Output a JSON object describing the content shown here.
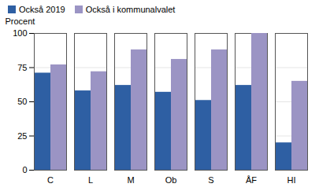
{
  "chart_data": {
    "type": "bar",
    "categories": [
      "C",
      "L",
      "M",
      "Ob",
      "S",
      "ÅF",
      "HI"
    ],
    "series": [
      {
        "name": "Också 2019",
        "color": "#2e5fa3",
        "values": [
          71,
          58,
          62,
          57,
          51,
          62,
          20
        ]
      },
      {
        "name": "Också i kommunalvalet",
        "color": "#9b94c4",
        "values": [
          77,
          72,
          88,
          81,
          88,
          100,
          65
        ]
      }
    ],
    "ylabel": "Procent",
    "ylim": [
      0,
      100
    ],
    "yticks": [
      0,
      25,
      50,
      75,
      100
    ],
    "grid": true,
    "legend": "upper left"
  }
}
